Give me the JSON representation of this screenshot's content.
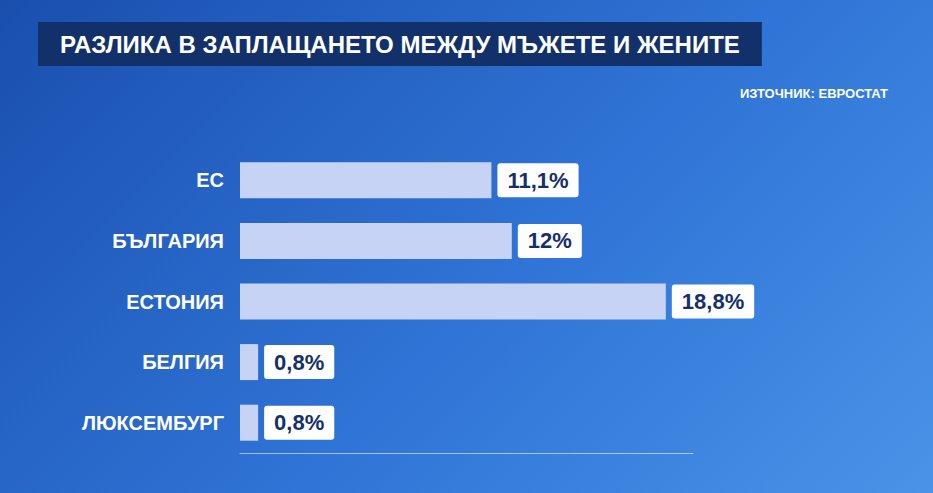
{
  "chart_data": {
    "type": "bar",
    "title": "РАЗЛИКА В ЗАПЛАЩАНЕТО МЕЖДУ МЪЖЕТЕ И ЖЕНИТЕ",
    "source": "ИЗТОЧНИК: ЕВРОСТАТ",
    "categories": [
      "ЕС",
      "БЪЛГАРИЯ",
      "ЕСТОНИЯ",
      "БЕЛГИЯ",
      "ЛЮКСЕМБУРГ"
    ],
    "values": [
      11.1,
      12,
      18.8,
      0.8,
      0.8
    ],
    "value_labels": [
      "11,1%",
      "12%",
      "18,8%",
      "0,8%",
      "0,8%"
    ],
    "color": "#c7d3f4",
    "xlim": [
      0,
      20
    ],
    "orientation": "horizontal",
    "data_labels": true,
    "tick_labels": "y",
    "grid": false
  }
}
